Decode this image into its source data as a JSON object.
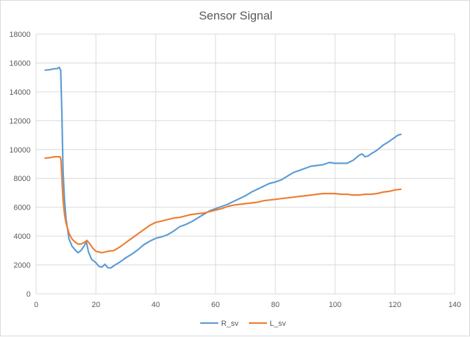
{
  "chart_data": {
    "type": "line",
    "title": "Sensor Signal",
    "xlabel": "",
    "ylabel": "",
    "xlim": [
      0,
      140
    ],
    "ylim": [
      0,
      18000
    ],
    "xticks": [
      0,
      20,
      40,
      60,
      80,
      100,
      120,
      140
    ],
    "yticks": [
      0,
      2000,
      4000,
      6000,
      8000,
      10000,
      12000,
      14000,
      16000,
      18000
    ],
    "grid": true,
    "legend": "bottom",
    "series": [
      {
        "name": "R_sv",
        "color": "#5b9bd5",
        "points": [
          [
            3,
            15500
          ],
          [
            5,
            15550
          ],
          [
            6,
            15600
          ],
          [
            7,
            15600
          ],
          [
            7.7,
            15700
          ],
          [
            8.2,
            15500
          ],
          [
            8.6,
            12500
          ],
          [
            9,
            8500
          ],
          [
            9.5,
            6500
          ],
          [
            10,
            5200
          ],
          [
            10.5,
            4500
          ],
          [
            11,
            3800
          ],
          [
            12,
            3300
          ],
          [
            13,
            3050
          ],
          [
            14,
            2850
          ],
          [
            15,
            3000
          ],
          [
            16,
            3300
          ],
          [
            16.8,
            3600
          ],
          [
            17.5,
            2900
          ],
          [
            18.5,
            2400
          ],
          [
            20,
            2150
          ],
          [
            21,
            1900
          ],
          [
            22,
            1850
          ],
          [
            23,
            2050
          ],
          [
            24,
            1800
          ],
          [
            25,
            1800
          ],
          [
            26,
            1950
          ],
          [
            28,
            2200
          ],
          [
            30,
            2500
          ],
          [
            32,
            2750
          ],
          [
            34,
            3050
          ],
          [
            36,
            3400
          ],
          [
            38,
            3650
          ],
          [
            40,
            3850
          ],
          [
            42,
            3950
          ],
          [
            44,
            4100
          ],
          [
            46,
            4350
          ],
          [
            48,
            4650
          ],
          [
            50,
            4800
          ],
          [
            52,
            5000
          ],
          [
            54,
            5250
          ],
          [
            56,
            5500
          ],
          [
            58,
            5750
          ],
          [
            60,
            5900
          ],
          [
            62,
            6050
          ],
          [
            64,
            6200
          ],
          [
            66,
            6400
          ],
          [
            68,
            6600
          ],
          [
            70,
            6800
          ],
          [
            72,
            7050
          ],
          [
            74,
            7250
          ],
          [
            76,
            7450
          ],
          [
            78,
            7650
          ],
          [
            80,
            7750
          ],
          [
            82,
            7900
          ],
          [
            84,
            8150
          ],
          [
            86,
            8400
          ],
          [
            88,
            8550
          ],
          [
            90,
            8700
          ],
          [
            92,
            8850
          ],
          [
            94,
            8900
          ],
          [
            96,
            8950
          ],
          [
            98,
            9100
          ],
          [
            100,
            9050
          ],
          [
            102,
            9050
          ],
          [
            104,
            9050
          ],
          [
            106,
            9250
          ],
          [
            108,
            9600
          ],
          [
            109,
            9700
          ],
          [
            110,
            9500
          ],
          [
            111,
            9550
          ],
          [
            112,
            9700
          ],
          [
            114,
            9950
          ],
          [
            116,
            10300
          ],
          [
            118,
            10550
          ],
          [
            120,
            10850
          ],
          [
            121,
            11000
          ],
          [
            122,
            11050
          ]
        ]
      },
      {
        "name": "L_sv",
        "color": "#ed7d31",
        "points": [
          [
            3,
            9400
          ],
          [
            5,
            9450
          ],
          [
            6,
            9500
          ],
          [
            7,
            9500
          ],
          [
            8,
            9500
          ],
          [
            8.3,
            9300
          ],
          [
            8.6,
            8000
          ],
          [
            9,
            6500
          ],
          [
            9.5,
            5500
          ],
          [
            10,
            4900
          ],
          [
            11,
            4200
          ],
          [
            12,
            3800
          ],
          [
            13,
            3600
          ],
          [
            14,
            3450
          ],
          [
            15,
            3450
          ],
          [
            16,
            3550
          ],
          [
            17,
            3700
          ],
          [
            18,
            3450
          ],
          [
            19,
            3150
          ],
          [
            20,
            2950
          ],
          [
            21,
            2900
          ],
          [
            22,
            2850
          ],
          [
            23,
            2900
          ],
          [
            24,
            2950
          ],
          [
            26,
            3000
          ],
          [
            28,
            3250
          ],
          [
            30,
            3550
          ],
          [
            32,
            3850
          ],
          [
            34,
            4150
          ],
          [
            36,
            4450
          ],
          [
            38,
            4750
          ],
          [
            40,
            4950
          ],
          [
            42,
            5050
          ],
          [
            44,
            5150
          ],
          [
            46,
            5250
          ],
          [
            48,
            5300
          ],
          [
            50,
            5400
          ],
          [
            52,
            5500
          ],
          [
            54,
            5550
          ],
          [
            56,
            5600
          ],
          [
            58,
            5700
          ],
          [
            60,
            5800
          ],
          [
            62,
            5900
          ],
          [
            64,
            6050
          ],
          [
            66,
            6150
          ],
          [
            68,
            6200
          ],
          [
            70,
            6250
          ],
          [
            72,
            6300
          ],
          [
            74,
            6350
          ],
          [
            76,
            6450
          ],
          [
            78,
            6500
          ],
          [
            80,
            6550
          ],
          [
            82,
            6600
          ],
          [
            84,
            6650
          ],
          [
            86,
            6700
          ],
          [
            88,
            6750
          ],
          [
            90,
            6800
          ],
          [
            92,
            6850
          ],
          [
            94,
            6900
          ],
          [
            96,
            6950
          ],
          [
            98,
            6950
          ],
          [
            100,
            6950
          ],
          [
            102,
            6900
          ],
          [
            104,
            6900
          ],
          [
            106,
            6850
          ],
          [
            108,
            6850
          ],
          [
            110,
            6900
          ],
          [
            112,
            6900
          ],
          [
            114,
            6950
          ],
          [
            116,
            7050
          ],
          [
            118,
            7100
          ],
          [
            120,
            7200
          ],
          [
            122,
            7250
          ]
        ]
      }
    ]
  }
}
